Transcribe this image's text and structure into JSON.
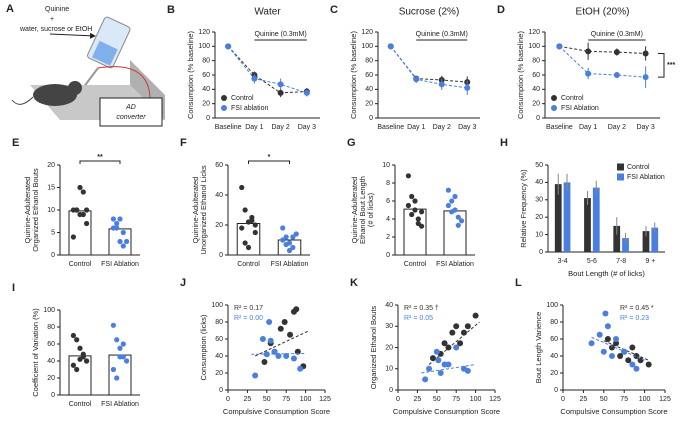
{
  "illustration": {
    "letter": "A",
    "labels": [
      "Quinine",
      "+",
      "water, sucrose or EtOH",
      "AD",
      "converter"
    ]
  },
  "chart_data": [
    {
      "panel": "B",
      "type": "line",
      "title": "Water",
      "annotation": "Quinine (0.3mM)",
      "ylabel": "Consumption (% baseline)",
      "categories": [
        "Baseline",
        "Day 1",
        "Day 2",
        "Day 3"
      ],
      "ylim": [
        0,
        120
      ],
      "yticks": [
        0,
        20,
        40,
        60,
        80,
        100,
        120
      ],
      "legend": "lower left",
      "series": [
        {
          "name": "Control",
          "color": "#333333",
          "values": [
            100,
            60,
            35,
            37
          ],
          "errors": [
            0,
            5,
            6,
            5
          ]
        },
        {
          "name": "FSI ablation",
          "color": "#4a7fe0",
          "values": [
            100,
            55,
            47,
            35
          ],
          "errors": [
            0,
            7,
            8,
            5
          ]
        }
      ]
    },
    {
      "panel": "C",
      "type": "line",
      "title": "Sucrose (2%)",
      "annotation": "Quinine (0.3mM)",
      "ylabel": "Consumption (% baseline)",
      "categories": [
        "Baseline",
        "Day 1",
        "Day 2",
        "Day 3"
      ],
      "ylim": [
        0,
        120
      ],
      "yticks": [
        0,
        20,
        40,
        60,
        80,
        100,
        120
      ],
      "series": [
        {
          "color": "#333333",
          "values": [
            100,
            55,
            53,
            50
          ],
          "errors": [
            0,
            4,
            6,
            8
          ]
        },
        {
          "color": "#4a7fe0",
          "values": [
            100,
            54,
            47,
            42
          ],
          "errors": [
            0,
            5,
            8,
            10
          ]
        }
      ]
    },
    {
      "panel": "D",
      "type": "line",
      "title": "EtOH (20%)",
      "annotation": "Quinine (0.3mM)",
      "significance": "***",
      "ylabel": "Consumption (% baseline)",
      "categories": [
        "Baseline",
        "Day 1",
        "Day 2",
        "Day 3"
      ],
      "ylim": [
        0,
        120
      ],
      "yticks": [
        0,
        20,
        40,
        60,
        80,
        100,
        120
      ],
      "legend": "lower left",
      "series": [
        {
          "name": "Control",
          "color": "#333333",
          "values": [
            100,
            93,
            92,
            90
          ],
          "errors": [
            0,
            12,
            5,
            10
          ]
        },
        {
          "name": "FSI Ablation",
          "color": "#4a7fe0",
          "values": [
            100,
            62,
            60,
            57
          ],
          "errors": [
            0,
            8,
            4,
            15
          ]
        }
      ]
    },
    {
      "panel": "E",
      "type": "bar",
      "significance": "**",
      "ylabel": [
        "Quinine-Adulterated",
        "Organized Ethanol Bouts"
      ],
      "categories": [
        "Control",
        "FSI Ablation"
      ],
      "values": [
        9.8,
        5.8
      ],
      "colors": [
        "#333333",
        "#4a7fe0"
      ],
      "ylim": [
        0,
        20
      ],
      "yticks": [
        0,
        5,
        10,
        15,
        20
      ],
      "points": [
        [
          10,
          10,
          9,
          14,
          7,
          4,
          10,
          15,
          9,
          10
        ],
        [
          8,
          6,
          3,
          5,
          3,
          6,
          7,
          8,
          2
        ]
      ]
    },
    {
      "panel": "F",
      "type": "bar",
      "significance": "*",
      "ylabel": [
        "Quinine-Adulterated",
        "Unorganized Ethanol Licks"
      ],
      "categories": [
        "Control",
        "FSI Ablation"
      ],
      "values": [
        21,
        10
      ],
      "colors": [
        "#333333",
        "#4a7fe0"
      ],
      "ylim": [
        0,
        60
      ],
      "yticks": [
        0,
        20,
        40,
        60
      ],
      "points": [
        [
          45,
          30,
          22,
          25,
          15,
          18,
          8,
          5,
          23,
          20
        ],
        [
          18,
          12,
          8,
          5,
          14,
          10,
          7,
          3,
          12
        ]
      ]
    },
    {
      "panel": "G",
      "type": "bar",
      "ylabel": [
        "Quinine-Adulterated",
        "Ethanol Bout Length",
        "(# of licks)"
      ],
      "categories": [
        "Control",
        "FSI Ablation"
      ],
      "values": [
        5.1,
        4.9
      ],
      "colors": [
        "#333333",
        "#4a7fe0"
      ],
      "ylim": [
        0,
        10
      ],
      "yticks": [
        0,
        2,
        4,
        6,
        8,
        10
      ],
      "points": [
        [
          8.8,
          6.5,
          5,
          4,
          3.2,
          5.5,
          4.5,
          6,
          3.5,
          4.8
        ],
        [
          7.2,
          6,
          5,
          4.2,
          3.8,
          5.5,
          4.8,
          6.5,
          3.3
        ]
      ]
    },
    {
      "panel": "H",
      "type": "bar",
      "ylabel": "Relative Frequency (%)",
      "xlabel": "Bout Length (# of licks)",
      "categories": [
        "3-4",
        "5-6",
        "7-8",
        "9 +"
      ],
      "ylim": [
        0,
        50
      ],
      "yticks": [
        0,
        10,
        20,
        30,
        40,
        50
      ],
      "legend": "upper right",
      "series": [
        {
          "name": "Control",
          "color": "#333333",
          "values": [
            39,
            31,
            15,
            12
          ],
          "errors": [
            6,
            4,
            5,
            3
          ]
        },
        {
          "name": "FSI Ablation",
          "color": "#4a7fe0",
          "values": [
            40,
            37,
            8,
            14
          ],
          "errors": [
            5,
            4,
            3,
            3
          ]
        }
      ]
    },
    {
      "panel": "I",
      "type": "bar",
      "ylabel": "Coefficient of Variation (%)",
      "categories": [
        "Control",
        "FSI Ablation"
      ],
      "values": [
        46,
        47
      ],
      "colors": [
        "#333333",
        "#4a7fe0"
      ],
      "ylim": [
        0,
        100
      ],
      "yticks": [
        0,
        20,
        40,
        60,
        80,
        100
      ],
      "points": [
        [
          70,
          65,
          55,
          45,
          40,
          35,
          30,
          42,
          48,
          40
        ],
        [
          82,
          65,
          55,
          45,
          40,
          30,
          20,
          45,
          60
        ]
      ]
    },
    {
      "panel": "J",
      "type": "scatter",
      "ylabel": "Consumption (licks)",
      "xlabel": "Compulsive Consumption Score",
      "xlim": [
        0,
        125
      ],
      "xticks": [
        0,
        25,
        50,
        75,
        100,
        125
      ],
      "ylim": [
        0,
        100
      ],
      "yticks": [
        0,
        20,
        40,
        60,
        80,
        100
      ],
      "series": [
        {
          "label": "R² = 0.17",
          "color": "#333333",
          "x": [
            47,
            55,
            60,
            68,
            73,
            80,
            85,
            88,
            90,
            97
          ],
          "values": [
            33,
            55,
            45,
            72,
            80,
            65,
            92,
            95,
            45,
            28
          ],
          "fit_x": [
            35,
            105
          ],
          "fit": [
            40,
            70
          ]
        },
        {
          "label": "R² = 0.00",
          "color": "#4a7fe0",
          "x": [
            35,
            45,
            50,
            53,
            55,
            60,
            65,
            75,
            85,
            93
          ],
          "values": [
            17,
            60,
            42,
            80,
            58,
            45,
            40,
            40,
            37,
            25
          ],
          "fit_x": [
            30,
            100
          ],
          "fit": [
            42,
            43
          ]
        }
      ]
    },
    {
      "panel": "K",
      "type": "scatter",
      "ylabel": "Organized Ethanol Bouts",
      "xlabel": "Compulsive Consumption Score",
      "xlim": [
        0,
        125
      ],
      "xticks": [
        0,
        25,
        50,
        75,
        100,
        125
      ],
      "ylim": [
        0,
        40
      ],
      "yticks": [
        0,
        10,
        20,
        30,
        40
      ],
      "series": [
        {
          "label": "R² = 0.35 †",
          "color": "#333333",
          "x": [
            45,
            55,
            60,
            65,
            70,
            75,
            80,
            85,
            90,
            100
          ],
          "values": [
            15,
            17,
            22,
            20,
            27,
            30,
            22,
            27,
            30,
            35
          ],
          "fit_x": [
            40,
            105
          ],
          "fit": [
            12,
            32
          ]
        },
        {
          "label": "R² = 0.05",
          "color": "#4a7fe0",
          "x": [
            35,
            40,
            50,
            52,
            55,
            60,
            65,
            75,
            85,
            90
          ],
          "values": [
            5,
            10,
            18,
            14,
            8,
            12,
            12,
            20,
            10,
            9
          ],
          "fit_x": [
            30,
            100
          ],
          "fit": [
            8,
            12
          ]
        }
      ]
    },
    {
      "panel": "L",
      "type": "scatter",
      "ylabel": "Bout Length Varience",
      "xlabel": "Compulsive Consumption Score",
      "xlim": [
        0,
        125
      ],
      "xticks": [
        0,
        25,
        50,
        75,
        100,
        125
      ],
      "ylim": [
        0,
        100
      ],
      "yticks": [
        0,
        20,
        40,
        60,
        80,
        100
      ],
      "series": [
        {
          "label": "R² = 0.45 *",
          "color": "#333333",
          "x": [
            55,
            60,
            65,
            70,
            75,
            80,
            85,
            90,
            95,
            105
          ],
          "values": [
            60,
            50,
            55,
            40,
            45,
            35,
            50,
            40,
            35,
            30
          ],
          "fit_x": [
            50,
            105
          ],
          "fit": [
            58,
            35
          ]
        },
        {
          "label": "R² = 0.23",
          "color": "#4a7fe0",
          "x": [
            35,
            45,
            50,
            52,
            55,
            60,
            65,
            75,
            85,
            90
          ],
          "values": [
            55,
            65,
            45,
            90,
            75,
            40,
            60,
            45,
            30,
            25
          ],
          "fit_x": [
            35,
            100
          ],
          "fit": [
            62,
            35
          ]
        }
      ]
    }
  ]
}
